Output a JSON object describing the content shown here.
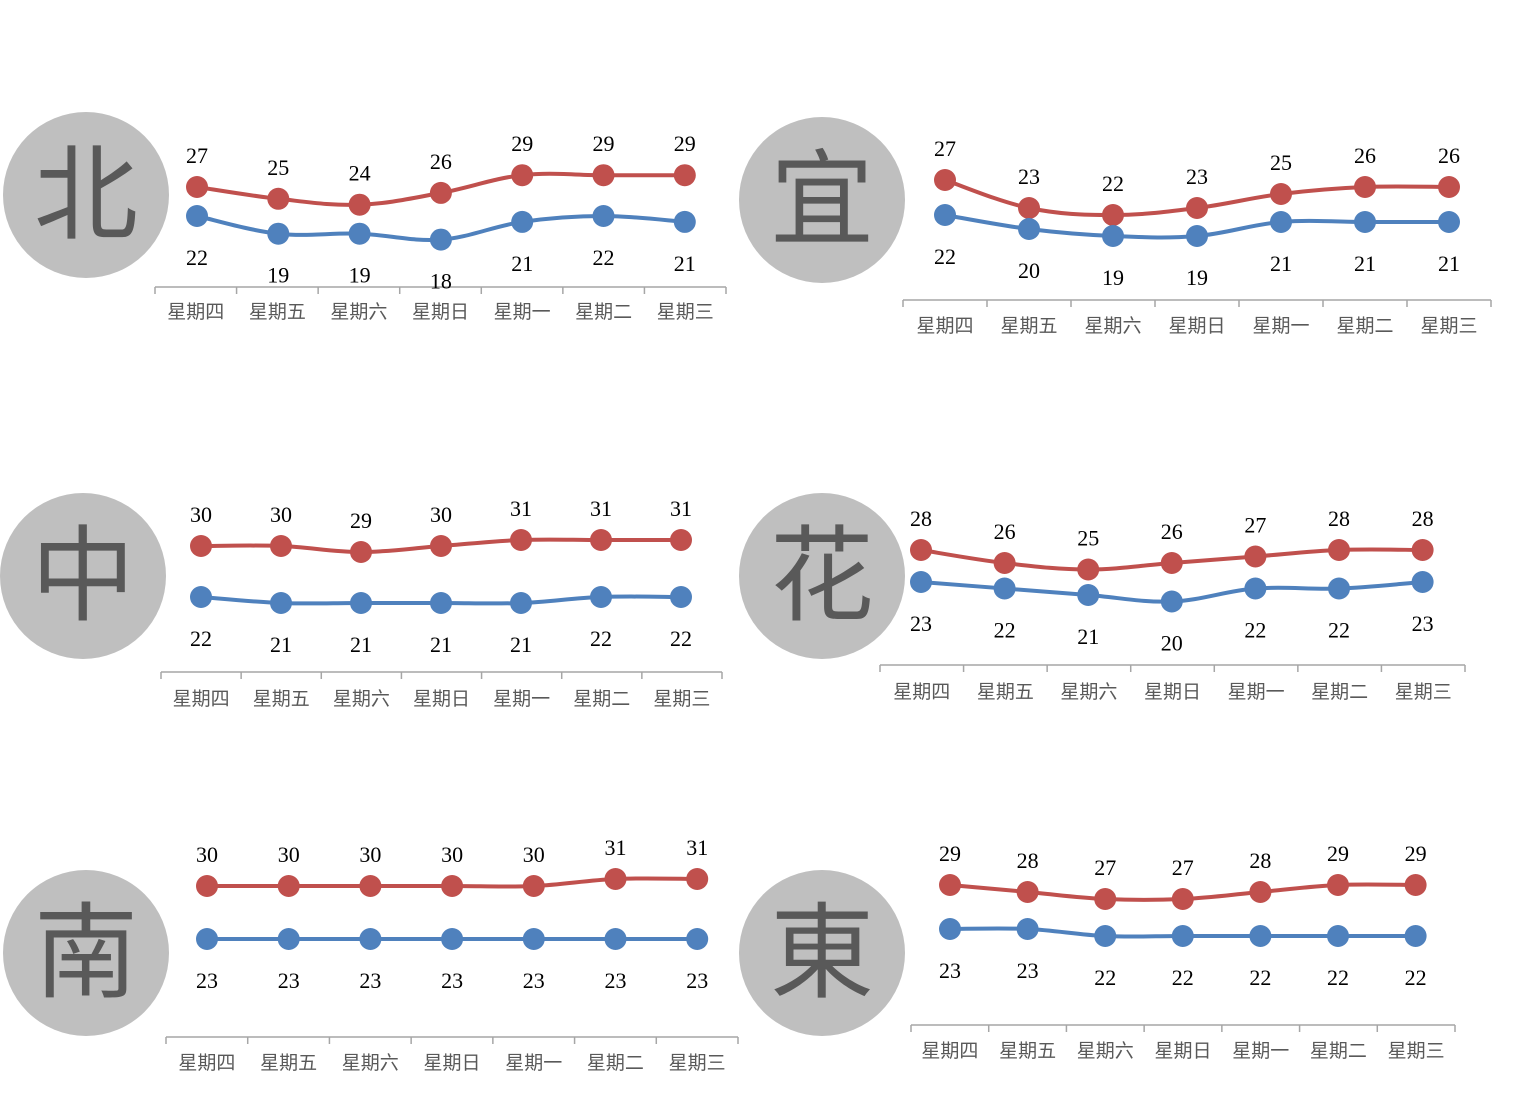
{
  "chart_data": [
    {
      "type": "line",
      "region": "北",
      "categories": [
        "星期四",
        "星期五",
        "星期六",
        "星期日",
        "星期一",
        "星期二",
        "星期三"
      ],
      "series": [
        {
          "color": "#c0504d",
          "values": [
            27,
            25,
            24,
            26,
            29,
            29,
            29
          ]
        },
        {
          "color": "#4f81bd",
          "values": [
            22,
            19,
            19,
            18,
            21,
            22,
            21
          ]
        }
      ],
      "data_labels": true,
      "grid": false,
      "legend": "none"
    },
    {
      "type": "line",
      "region": "宜",
      "categories": [
        "星期四",
        "星期五",
        "星期六",
        "星期日",
        "星期一",
        "星期二",
        "星期三"
      ],
      "series": [
        {
          "color": "#c0504d",
          "values": [
            27,
            23,
            22,
            23,
            25,
            26,
            26
          ]
        },
        {
          "color": "#4f81bd",
          "values": [
            22,
            20,
            19,
            19,
            21,
            21,
            21
          ]
        }
      ],
      "data_labels": true,
      "grid": false,
      "legend": "none"
    },
    {
      "type": "line",
      "region": "中",
      "categories": [
        "星期四",
        "星期五",
        "星期六",
        "星期日",
        "星期一",
        "星期二",
        "星期三"
      ],
      "series": [
        {
          "color": "#c0504d",
          "values": [
            30,
            30,
            29,
            30,
            31,
            31,
            31
          ]
        },
        {
          "color": "#4f81bd",
          "values": [
            22,
            21,
            21,
            21,
            21,
            22,
            22
          ]
        }
      ],
      "data_labels": true,
      "grid": false,
      "legend": "none"
    },
    {
      "type": "line",
      "region": "花",
      "categories": [
        "星期四",
        "星期五",
        "星期六",
        "星期日",
        "星期一",
        "星期二",
        "星期三"
      ],
      "series": [
        {
          "color": "#c0504d",
          "values": [
            28,
            26,
            25,
            26,
            27,
            28,
            28
          ]
        },
        {
          "color": "#4f81bd",
          "values": [
            23,
            22,
            21,
            20,
            22,
            22,
            23
          ]
        }
      ],
      "data_labels": true,
      "grid": false,
      "legend": "none"
    },
    {
      "type": "line",
      "region": "南",
      "categories": [
        "星期四",
        "星期五",
        "星期六",
        "星期日",
        "星期一",
        "星期二",
        "星期三"
      ],
      "series": [
        {
          "color": "#c0504d",
          "values": [
            30,
            30,
            30,
            30,
            30,
            31,
            31
          ]
        },
        {
          "color": "#4f81bd",
          "values": [
            23,
            23,
            23,
            23,
            23,
            23,
            23
          ]
        }
      ],
      "data_labels": true,
      "grid": false,
      "legend": "none"
    },
    {
      "type": "line",
      "region": "東",
      "categories": [
        "星期四",
        "星期五",
        "星期六",
        "星期日",
        "星期一",
        "星期二",
        "星期三"
      ],
      "series": [
        {
          "color": "#c0504d",
          "values": [
            29,
            28,
            27,
            27,
            28,
            29,
            29
          ]
        },
        {
          "color": "#4f81bd",
          "values": [
            23,
            23,
            22,
            22,
            22,
            22,
            22
          ]
        }
      ],
      "data_labels": true,
      "grid": false,
      "legend": "none"
    }
  ]
}
